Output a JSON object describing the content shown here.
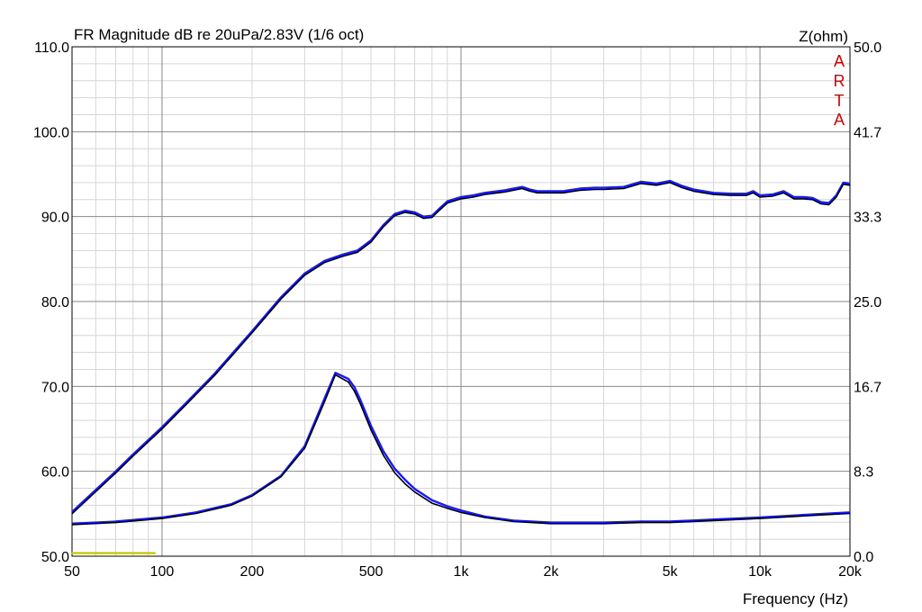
{
  "chart_data": {
    "type": "line",
    "title": "FR Magnitude dB re 20uPa/2.83V (1/6 oct)",
    "xlabel": "Frequency (Hz)",
    "ylabel_right": "Z(ohm)",
    "brand_letters": [
      "A",
      "R",
      "T",
      "A"
    ],
    "x_scale": "log",
    "xlim": [
      50,
      20000
    ],
    "ylim": [
      50,
      110
    ],
    "ylim_right": [
      0,
      50
    ],
    "x_ticks": [
      {
        "value": 50,
        "label": "50"
      },
      {
        "value": 100,
        "label": "100"
      },
      {
        "value": 200,
        "label": "200"
      },
      {
        "value": 500,
        "label": "500"
      },
      {
        "value": 1000,
        "label": "1k"
      },
      {
        "value": 2000,
        "label": "2k"
      },
      {
        "value": 5000,
        "label": "5k"
      },
      {
        "value": 10000,
        "label": "10k"
      },
      {
        "value": 20000,
        "label": "20k"
      }
    ],
    "y_ticks_left": [
      {
        "value": 50,
        "label": "50.0"
      },
      {
        "value": 60,
        "label": "60.0"
      },
      {
        "value": 70,
        "label": "70.0"
      },
      {
        "value": 80,
        "label": "80.0"
      },
      {
        "value": 90,
        "label": "90.0"
      },
      {
        "value": 100,
        "label": "100.0"
      },
      {
        "value": 110,
        "label": "110.0"
      }
    ],
    "y_ticks_right": [
      {
        "value": 0,
        "label": "0.0"
      },
      {
        "value": 8.33,
        "label": "8.3"
      },
      {
        "value": 16.67,
        "label": "16.7"
      },
      {
        "value": 25,
        "label": "25.0"
      },
      {
        "value": 33.33,
        "label": "33.3"
      },
      {
        "value": 41.67,
        "label": "41.7"
      },
      {
        "value": 50,
        "label": "50.0"
      }
    ],
    "grid": true,
    "series": [
      {
        "axis": "left",
        "color": "#1a1aff",
        "x": [
          50,
          60,
          70,
          80,
          100,
          120,
          150,
          200,
          250,
          300,
          350,
          400,
          450,
          500,
          550,
          600,
          650,
          700,
          750,
          800,
          850,
          900,
          1000,
          1100,
          1200,
          1400,
          1600,
          1700,
          1800,
          2000,
          2200,
          2500,
          2800,
          3000,
          3500,
          4000,
          4500,
          5000,
          5500,
          6000,
          7000,
          8000,
          9000,
          9500,
          10000,
          11000,
          12000,
          13000,
          14000,
          15000,
          16000,
          17000,
          18000,
          19000,
          20000
        ],
        "y": [
          55.2,
          57.8,
          60.0,
          62.0,
          65.2,
          68.0,
          71.5,
          76.5,
          80.5,
          83.3,
          84.8,
          85.5,
          86.0,
          87.2,
          89.0,
          90.3,
          90.7,
          90.5,
          90.0,
          90.1,
          91.0,
          91.8,
          92.3,
          92.5,
          92.8,
          93.1,
          93.5,
          93.2,
          93.0,
          93.0,
          93.0,
          93.3,
          93.4,
          93.4,
          93.5,
          94.1,
          93.9,
          94.2,
          93.6,
          93.2,
          92.8,
          92.7,
          92.7,
          93.0,
          92.5,
          92.6,
          93.0,
          92.3,
          92.3,
          92.2,
          91.7,
          91.6,
          92.5,
          94.0,
          93.9
        ]
      },
      {
        "axis": "left",
        "color": "#000000",
        "x": [
          50,
          60,
          70,
          80,
          100,
          120,
          150,
          200,
          250,
          300,
          350,
          400,
          450,
          500,
          550,
          600,
          650,
          700,
          750,
          800,
          850,
          900,
          1000,
          1100,
          1200,
          1400,
          1600,
          1700,
          1800,
          2000,
          2200,
          2500,
          2800,
          3000,
          3500,
          4000,
          4500,
          5000,
          5500,
          6000,
          7000,
          8000,
          9000,
          9500,
          10000,
          11000,
          12000,
          13000,
          14000,
          15000,
          16000,
          17000,
          18000,
          19000,
          20000
        ],
        "y": [
          55.0,
          57.6,
          59.8,
          61.8,
          65.0,
          67.8,
          71.3,
          76.3,
          80.3,
          83.1,
          84.6,
          85.3,
          85.8,
          87.0,
          88.8,
          90.1,
          90.5,
          90.3,
          89.8,
          89.9,
          90.8,
          91.6,
          92.1,
          92.3,
          92.6,
          92.9,
          93.3,
          93.0,
          92.8,
          92.8,
          92.8,
          93.1,
          93.2,
          93.2,
          93.3,
          93.9,
          93.7,
          94.0,
          93.4,
          93.0,
          92.6,
          92.5,
          92.5,
          92.8,
          92.3,
          92.4,
          92.8,
          92.1,
          92.1,
          92.0,
          91.5,
          91.4,
          92.3,
          93.8,
          93.7
        ]
      },
      {
        "axis": "right",
        "color": "#1a1aff",
        "x": [
          50,
          70,
          100,
          130,
          170,
          200,
          250,
          300,
          350,
          380,
          420,
          440,
          460,
          500,
          550,
          600,
          650,
          700,
          800,
          900,
          1000,
          1200,
          1500,
          2000,
          2500,
          3000,
          4000,
          5000,
          7000,
          10000,
          15000,
          20000
        ],
        "y": [
          3.2,
          3.4,
          3.8,
          4.3,
          5.1,
          6.0,
          7.9,
          10.8,
          15.5,
          18.0,
          17.4,
          16.6,
          15.4,
          12.8,
          10.3,
          8.6,
          7.5,
          6.6,
          5.5,
          4.9,
          4.5,
          3.9,
          3.5,
          3.3,
          3.3,
          3.3,
          3.4,
          3.4,
          3.6,
          3.8,
          4.1,
          4.3
        ]
      },
      {
        "axis": "right",
        "color": "#000000",
        "x": [
          50,
          70,
          100,
          130,
          170,
          200,
          250,
          300,
          350,
          380,
          420,
          440,
          460,
          500,
          550,
          600,
          650,
          700,
          800,
          900,
          1000,
          1200,
          1500,
          2000,
          2500,
          3000,
          4000,
          5000,
          7000,
          10000,
          15000,
          20000
        ],
        "y": [
          3.1,
          3.3,
          3.7,
          4.2,
          5.0,
          5.9,
          7.8,
          10.6,
          15.2,
          17.8,
          17.1,
          16.2,
          15.0,
          12.4,
          9.9,
          8.2,
          7.1,
          6.3,
          5.2,
          4.7,
          4.3,
          3.8,
          3.4,
          3.2,
          3.2,
          3.2,
          3.3,
          3.3,
          3.5,
          3.7,
          4.0,
          4.2
        ]
      },
      {
        "axis": "right",
        "color": "#c8c800",
        "x": [
          50,
          95
        ],
        "y": [
          0.3,
          0.3
        ]
      }
    ]
  }
}
